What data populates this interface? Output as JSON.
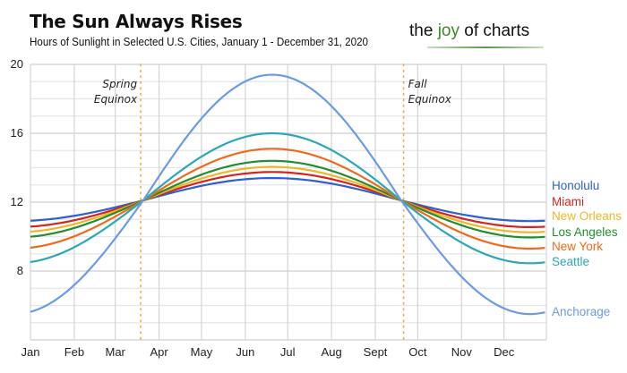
{
  "header": {
    "title": "The Sun Always Rises",
    "subtitle": "Hours of Sunlight in Selected U.S. Cities, January 1 - December 31, 2020",
    "brand_pre": "the ",
    "brand_joy": "joy",
    "brand_post": " of charts"
  },
  "chart_data": {
    "type": "line",
    "title": "The Sun Always Rises",
    "subtitle": "Hours of Sunlight in Selected U.S. Cities, January 1 - December 31, 2020",
    "xlabel": "",
    "ylabel": "",
    "x_ticks": [
      "Jan",
      "Feb",
      "Mar",
      "Apr",
      "May",
      "Jun",
      "Jul",
      "Aug",
      "Sept",
      "Oct",
      "Nov",
      "Dec"
    ],
    "x_range_days": [
      1,
      366
    ],
    "month_start_days": [
      1,
      32,
      61,
      92,
      122,
      153,
      183,
      214,
      245,
      275,
      306,
      336
    ],
    "ylim": [
      4,
      20
    ],
    "y_ticks": [
      8,
      12,
      16,
      20
    ],
    "grid": true,
    "legend": "right (labels at line ends)",
    "annotations": [
      {
        "text": [
          "Spring",
          "Equinox"
        ],
        "day": 79
      },
      {
        "text": [
          "Fall",
          "Equinox"
        ],
        "day": 265
      }
    ],
    "series": [
      {
        "name": "Honolulu",
        "color": "#2f5fd0",
        "min_hours": 10.9,
        "max_hours": 13.4
      },
      {
        "name": "Miami",
        "color": "#d0261f",
        "min_hours": 10.55,
        "max_hours": 13.75
      },
      {
        "name": "New Orleans",
        "color": "#f2b52a",
        "min_hours": 10.25,
        "max_hours": 14.05
      },
      {
        "name": "Los Angeles",
        "color": "#1f8f2f",
        "min_hours": 9.95,
        "max_hours": 14.4
      },
      {
        "name": "New York",
        "color": "#f06a1a",
        "min_hours": 9.3,
        "max_hours": 15.1
      },
      {
        "name": "Seattle",
        "color": "#2aa8b8",
        "min_hours": 8.45,
        "max_hours": 16.0
      },
      {
        "name": "Anchorage",
        "color": "#6b9be6",
        "min_hours": 5.5,
        "max_hours": 19.4
      }
    ],
    "equinox_hours": 12.1,
    "solstice_days": {
      "summer": 172,
      "winter": 356
    }
  }
}
